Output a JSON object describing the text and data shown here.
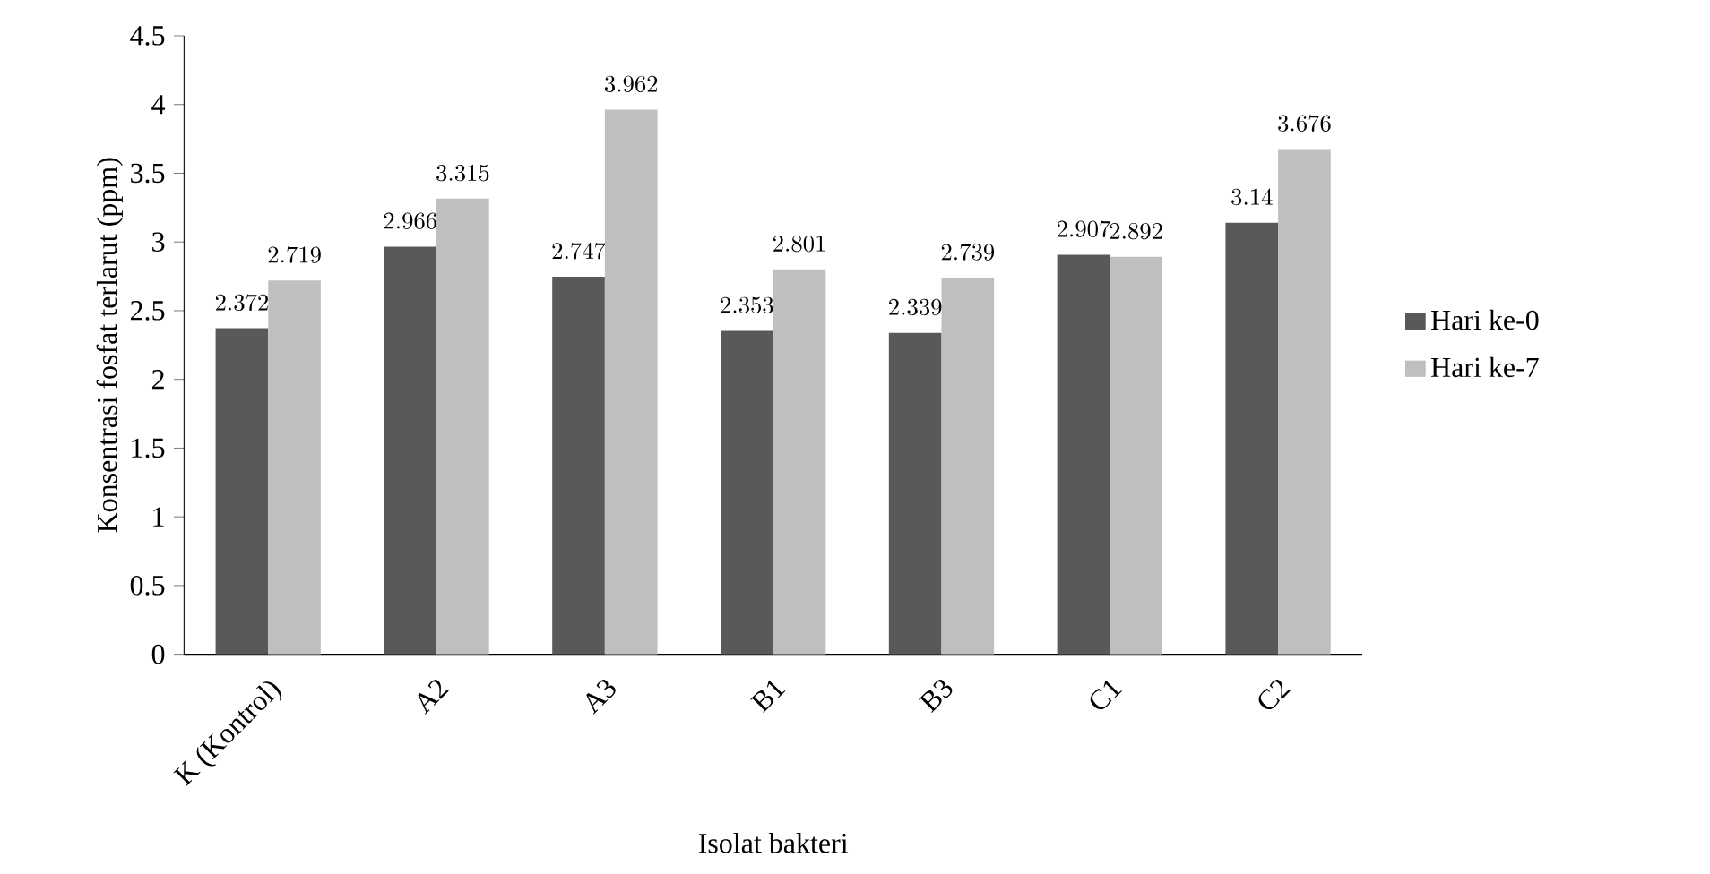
{
  "chart_data": {
    "type": "bar",
    "xlabel": "Isolat bakteri",
    "ylabel": "Konsentrasi fosfat terlarut (ppm)",
    "categories": [
      "K (Kontrol)",
      "A2",
      "A3",
      "B1",
      "B3",
      "C1",
      "C2"
    ],
    "series": [
      {
        "name": "Hari ke-0",
        "color": "#595959",
        "values": [
          2.372,
          2.966,
          2.747,
          2.353,
          2.339,
          2.907,
          3.14
        ]
      },
      {
        "name": "Hari ke-7",
        "color": "#bfbfbf",
        "values": [
          2.719,
          3.315,
          3.962,
          2.801,
          2.739,
          2.892,
          3.676
        ]
      }
    ],
    "ylim": [
      0,
      4.5
    ],
    "yticks": [
      0,
      0.5,
      1,
      1.5,
      2,
      2.5,
      3,
      3.5,
      4,
      4.5
    ],
    "data_labels": true,
    "legend": "right"
  }
}
